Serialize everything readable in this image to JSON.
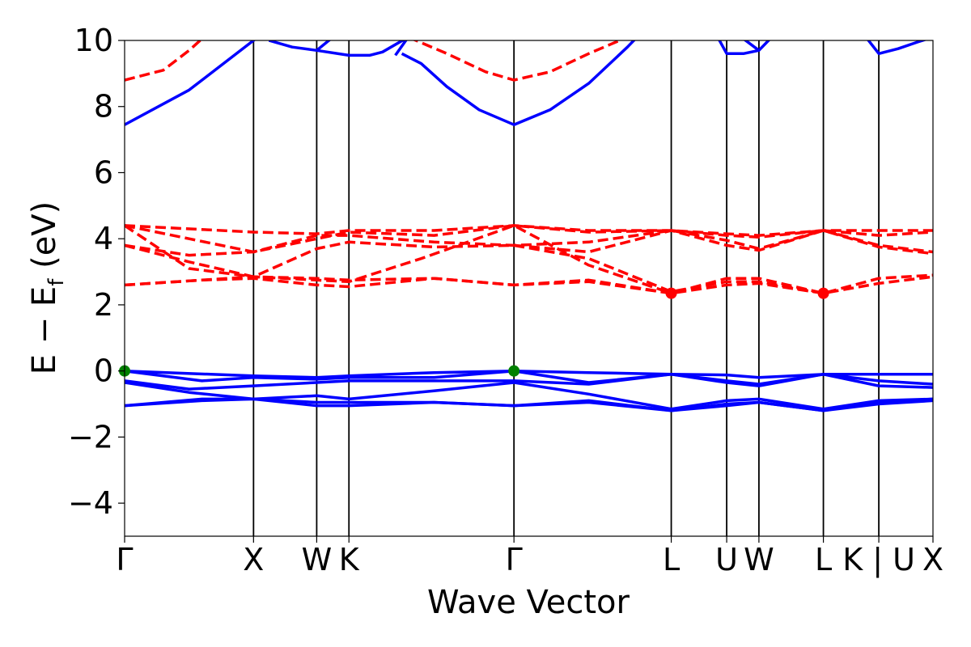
{
  "chart_data": {
    "type": "line",
    "title": "",
    "xlabel": "Wave Vector",
    "ylabel_parts": {
      "main": "E − E",
      "sub": "f",
      "unit": " (eV)"
    },
    "ylim": [
      -5,
      10
    ],
    "xlim": [
      0,
      6.27
    ],
    "yticks": [
      -4,
      -2,
      0,
      2,
      4,
      6,
      8,
      10
    ],
    "ytick_labels": [
      "−4",
      "−2",
      "0",
      "2",
      "4",
      "6",
      "8",
      "10"
    ],
    "kpoints": [
      {
        "label": "Γ",
        "x": 0.0
      },
      {
        "label": "X",
        "x": 1.0
      },
      {
        "label": "W",
        "x": 1.49
      },
      {
        "label": "K",
        "x": 1.74
      },
      {
        "label": "Γ",
        "x": 3.02
      },
      {
        "label": "L",
        "x": 4.24
      },
      {
        "label": "U",
        "x": 4.67
      },
      {
        "label": "W",
        "x": 4.92
      },
      {
        "label": "L",
        "x": 5.42
      },
      {
        "label": "K | U",
        "x": 5.85
      },
      {
        "label": "X",
        "x": 6.27
      }
    ],
    "grid": false,
    "legend": "none",
    "colors": {
      "valence": "#0000ff",
      "conduction": "#ff0000",
      "vbm": "#008000",
      "cbm": "#ff0000"
    },
    "series": [
      {
        "group": "valence",
        "style": "solid",
        "x": [
          0,
          1.0,
          1.49,
          1.74,
          2.4,
          3.02,
          3.6,
          4.24,
          4.67,
          4.92,
          5.42,
          5.85,
          6.27
        ],
        "y": [
          0.0,
          -0.15,
          -0.2,
          -0.15,
          -0.05,
          0.0,
          -0.05,
          -0.1,
          -0.12,
          -0.2,
          -0.1,
          -0.1,
          -0.1
        ]
      },
      {
        "group": "valence",
        "style": "solid",
        "x": [
          0,
          0.6,
          1.0,
          1.49,
          1.74,
          2.4,
          3.02,
          3.6,
          4.24,
          4.67,
          4.92,
          5.42,
          5.85,
          6.27
        ],
        "y": [
          0.0,
          -0.3,
          -0.2,
          -0.25,
          -0.2,
          -0.2,
          0.0,
          -0.35,
          -0.1,
          -0.3,
          -0.4,
          -0.1,
          -0.3,
          -0.4
        ]
      },
      {
        "group": "valence",
        "style": "solid",
        "x": [
          0,
          0.5,
          1.0,
          1.49,
          1.74,
          2.4,
          3.02,
          3.6,
          4.24,
          4.67,
          4.92,
          5.42,
          5.85,
          6.27
        ],
        "y": [
          -0.3,
          -0.55,
          -0.45,
          -0.35,
          -0.3,
          -0.3,
          -0.3,
          -0.4,
          -0.1,
          -0.35,
          -0.45,
          -0.1,
          -0.45,
          -0.5
        ]
      },
      {
        "group": "valence",
        "style": "solid",
        "x": [
          0,
          0.5,
          1.0,
          1.49,
          1.74,
          2.4,
          3.02,
          3.6,
          4.24,
          4.67,
          4.92,
          5.42,
          5.85,
          6.27
        ],
        "y": [
          -0.35,
          -0.65,
          -0.85,
          -0.75,
          -0.85,
          -0.6,
          -0.35,
          -0.7,
          -1.15,
          -0.9,
          -0.85,
          -1.15,
          -0.9,
          -0.85
        ]
      },
      {
        "group": "valence",
        "style": "solid",
        "x": [
          0,
          0.6,
          1.0,
          1.49,
          1.74,
          2.4,
          3.02,
          3.6,
          4.24,
          4.67,
          4.92,
          5.42,
          5.85,
          6.27
        ],
        "y": [
          -1.05,
          -0.9,
          -0.85,
          -0.95,
          -0.95,
          -0.95,
          -1.05,
          -0.9,
          -1.2,
          -1.0,
          -0.95,
          -1.2,
          -0.95,
          -0.85
        ]
      },
      {
        "group": "valence",
        "style": "solid",
        "x": [
          0,
          0.6,
          1.0,
          1.49,
          1.74,
          2.4,
          3.02,
          3.6,
          4.24,
          4.67,
          4.92,
          5.42,
          5.85,
          6.27
        ],
        "y": [
          -1.05,
          -0.85,
          -0.85,
          -1.05,
          -1.05,
          -0.95,
          -1.05,
          -0.95,
          -1.2,
          -1.05,
          -0.95,
          -1.2,
          -1.0,
          -0.9
        ]
      },
      {
        "group": "valence",
        "style": "solid",
        "x": [
          0,
          0.5,
          1.0,
          1.1
        ],
        "y": [
          7.45,
          8.5,
          10.0,
          10.3
        ]
      },
      {
        "group": "valence",
        "style": "solid",
        "x": [
          1.12,
          1.3,
          1.49,
          1.74,
          1.9,
          2.0,
          2.2
        ],
        "y": [
          10.0,
          9.8,
          9.7,
          9.55,
          9.55,
          9.65,
          10.1
        ]
      },
      {
        "group": "valence",
        "style": "solid",
        "x": [
          1.49,
          1.6
        ],
        "y": [
          9.7,
          10.05
        ]
      },
      {
        "group": "valence",
        "style": "solid",
        "x": [
          2.15,
          2.3,
          2.5,
          2.75,
          3.02,
          3.3,
          3.6,
          3.9,
          4.0
        ],
        "y": [
          9.6,
          9.3,
          8.6,
          7.9,
          7.45,
          7.9,
          8.7,
          9.8,
          10.2
        ]
      },
      {
        "group": "valence",
        "style": "solid",
        "x": [
          2.1,
          2.2
        ],
        "y": [
          9.55,
          10.1
        ]
      },
      {
        "group": "valence",
        "style": "solid",
        "x": [
          4.6,
          4.67,
          4.8,
          4.92,
          5.02
        ],
        "y": [
          10.1,
          9.6,
          9.6,
          9.7,
          10.1
        ]
      },
      {
        "group": "valence",
        "style": "solid",
        "x": [
          4.8,
          4.92
        ],
        "y": [
          10.05,
          9.7
        ]
      },
      {
        "group": "valence",
        "style": "solid",
        "x": [
          5.75,
          5.85,
          6.0,
          6.15,
          6.27
        ],
        "y": [
          10.1,
          9.6,
          9.75,
          9.95,
          10.1
        ]
      },
      {
        "group": "conduction",
        "style": "dashed",
        "x": [
          0,
          0.3,
          0.5,
          0.6
        ],
        "y": [
          8.8,
          9.1,
          9.7,
          10.05
        ]
      },
      {
        "group": "conduction",
        "style": "dashed",
        "x": [
          2.2,
          2.5,
          2.8,
          3.02,
          3.3,
          3.6,
          3.9
        ],
        "y": [
          10.1,
          9.6,
          9.05,
          8.8,
          9.05,
          9.6,
          10.1
        ]
      },
      {
        "group": "conduction",
        "style": "dashed",
        "x": [
          0,
          1.0,
          1.49,
          1.74,
          2.4,
          3.02,
          3.6,
          4.24,
          4.67,
          4.92,
          5.42,
          5.85,
          6.27
        ],
        "y": [
          4.4,
          4.2,
          4.15,
          4.25,
          4.25,
          4.4,
          4.25,
          4.25,
          4.15,
          4.1,
          4.25,
          4.25,
          4.25
        ]
      },
      {
        "group": "conduction",
        "style": "dashed",
        "x": [
          0,
          0.5,
          1.0,
          1.49,
          1.74,
          2.4,
          3.02,
          3.6,
          4.24,
          4.67,
          4.92,
          5.42,
          5.85,
          6.27
        ],
        "y": [
          4.4,
          4.0,
          3.6,
          4.0,
          4.2,
          4.1,
          4.4,
          4.2,
          4.25,
          4.1,
          4.05,
          4.25,
          4.1,
          4.2
        ]
      },
      {
        "group": "conduction",
        "style": "dashed",
        "x": [
          0,
          0.5,
          1.0,
          1.49,
          1.74,
          2.4,
          3.02,
          3.6,
          4.24,
          4.67,
          4.92,
          5.42,
          5.85,
          6.27
        ],
        "y": [
          3.8,
          3.5,
          3.6,
          4.1,
          4.1,
          3.9,
          3.8,
          3.9,
          4.25,
          3.95,
          3.7,
          4.25,
          3.8,
          3.6
        ]
      },
      {
        "group": "conduction",
        "style": "dashed",
        "x": [
          0,
          0.5,
          1.0,
          1.49,
          1.74,
          2.4,
          3.02,
          3.6,
          4.24,
          4.67,
          4.92,
          5.42,
          5.85,
          6.27
        ],
        "y": [
          3.8,
          3.3,
          2.85,
          3.7,
          3.9,
          3.75,
          3.8,
          3.6,
          4.25,
          3.8,
          3.65,
          4.25,
          3.75,
          3.55
        ]
      },
      {
        "group": "conduction",
        "style": "dashed",
        "x": [
          0,
          0.5,
          1.0,
          1.49,
          1.74,
          2.3,
          3.02,
          3.6,
          4.24
        ],
        "y": [
          4.4,
          3.1,
          2.85,
          2.75,
          2.7,
          3.4,
          4.4,
          3.2,
          2.35
        ]
      },
      {
        "group": "conduction",
        "style": "dashed",
        "x": [
          0,
          0.6,
          1.0,
          1.49,
          1.74,
          2.4,
          3.02,
          3.6,
          4.24,
          4.67,
          4.92,
          5.42,
          5.85,
          6.27
        ],
        "y": [
          2.6,
          2.75,
          2.85,
          2.8,
          2.75,
          2.8,
          2.6,
          2.75,
          2.35,
          2.8,
          2.8,
          2.35,
          2.8,
          2.9
        ]
      },
      {
        "group": "conduction",
        "style": "dashed",
        "x": [
          0,
          0.6,
          1.0,
          1.49,
          1.74,
          2.4,
          3.02,
          3.6,
          4.24,
          4.67,
          4.92,
          5.42,
          5.85,
          6.27
        ],
        "y": [
          2.6,
          2.75,
          2.8,
          2.6,
          2.55,
          2.8,
          2.6,
          2.7,
          2.35,
          2.6,
          2.65,
          2.35,
          2.65,
          2.85
        ]
      },
      {
        "group": "conduction",
        "style": "dashed",
        "x": [
          3.02,
          3.6,
          4.24,
          4.67,
          4.92,
          5.42
        ],
        "y": [
          3.8,
          3.4,
          2.4,
          2.7,
          2.7,
          2.35
        ]
      }
    ],
    "markers": [
      {
        "x": 0.0,
        "y": 0.0,
        "kind": "vbm"
      },
      {
        "x": 3.02,
        "y": 0.0,
        "kind": "vbm"
      },
      {
        "x": 4.24,
        "y": 2.35,
        "kind": "cbm"
      },
      {
        "x": 5.42,
        "y": 2.35,
        "kind": "cbm"
      }
    ]
  }
}
